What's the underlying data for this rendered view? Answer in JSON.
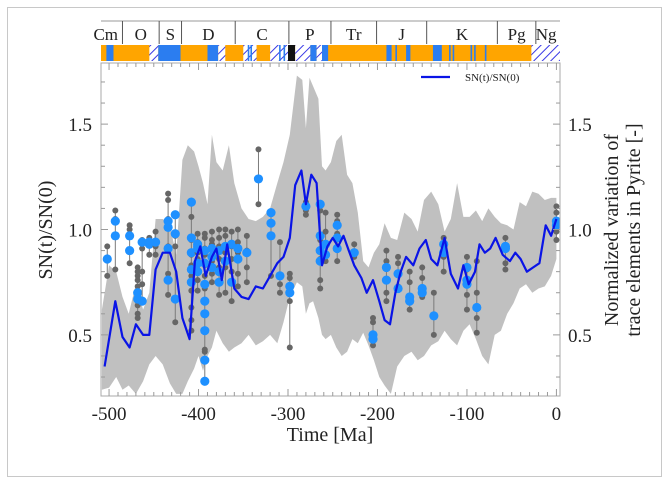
{
  "chart_data": {
    "type": "line",
    "title": "",
    "xlabel": "Time [Ma]",
    "ylabel": "SN(t)/SN(0)",
    "ylabel_right": [
      "Normalized variation of",
      "trace elements in Pyrite [-]"
    ],
    "xlim": [
      -509,
      4
    ],
    "ylim": [
      0.21,
      1.79
    ],
    "x_ticks": [
      -500,
      -400,
      -300,
      -200,
      -100,
      0
    ],
    "x_tick_labels": [
      "-500",
      "-400",
      "-300",
      "-200",
      "-100",
      "0"
    ],
    "y_ticks": [
      0.5,
      1.0,
      1.5
    ],
    "y_tick_labels": [
      "0.5",
      "1.0",
      "1.5"
    ],
    "grid": false,
    "legend": {
      "position": "top-right",
      "entries": [
        {
          "label": "SN(t)/SN(0)",
          "color": "#0a14e6"
        }
      ]
    },
    "colors": {
      "line": "#0a14e6",
      "band": "#c0c0c0",
      "points_gray": "#666666",
      "points_blue": "#1e90ff",
      "orange": "#ffa500",
      "period_blue": "#2b7df0"
    },
    "geologic_periods": [
      {
        "label": "Cm",
        "start": -541,
        "end": -485
      },
      {
        "label": "O",
        "start": -485,
        "end": -444
      },
      {
        "label": "S",
        "start": -444,
        "end": -419
      },
      {
        "label": "D",
        "start": -419,
        "end": -359
      },
      {
        "label": "C",
        "start": -359,
        "end": -299
      },
      {
        "label": "P",
        "start": -299,
        "end": -252
      },
      {
        "label": "Tr",
        "start": -252,
        "end": -201
      },
      {
        "label": "J",
        "start": -201,
        "end": -145
      },
      {
        "label": "K",
        "start": -145,
        "end": -66
      },
      {
        "label": "Pg",
        "start": -66,
        "end": -23
      },
      {
        "label": "Ng",
        "start": -23,
        "end": 0
      }
    ],
    "polarity_bar": [
      {
        "start": -509,
        "end": -503,
        "type": "orange"
      },
      {
        "start": -503,
        "end": -495,
        "type": "blue"
      },
      {
        "start": -495,
        "end": -455,
        "type": "orange"
      },
      {
        "start": -455,
        "end": -445,
        "type": "hatched"
      },
      {
        "start": -445,
        "end": -420,
        "type": "blue"
      },
      {
        "start": -420,
        "end": -390,
        "type": "orange"
      },
      {
        "start": -390,
        "end": -378,
        "type": "blue"
      },
      {
        "start": -378,
        "end": -370,
        "type": "hatched"
      },
      {
        "start": -370,
        "end": -350,
        "type": "orange"
      },
      {
        "start": -350,
        "end": -335,
        "type": "hatched"
      },
      {
        "start": -335,
        "end": -320,
        "type": "orange"
      },
      {
        "start": -320,
        "end": -300,
        "type": "hatched"
      },
      {
        "start": -300,
        "end": -292,
        "type": "black"
      },
      {
        "start": -292,
        "end": -275,
        "type": "hatched"
      },
      {
        "start": -275,
        "end": -268,
        "type": "blue"
      },
      {
        "start": -268,
        "end": -262,
        "type": "hatched"
      },
      {
        "start": -262,
        "end": -255,
        "type": "blue"
      },
      {
        "start": -255,
        "end": -190,
        "type": "orange"
      },
      {
        "start": -190,
        "end": -186,
        "type": "blue"
      },
      {
        "start": -186,
        "end": -168,
        "type": "orange"
      },
      {
        "start": -168,
        "end": -164,
        "type": "blue"
      },
      {
        "start": -164,
        "end": -158,
        "type": "orange"
      },
      {
        "start": -158,
        "end": -145,
        "type": "orange"
      },
      {
        "start": -138,
        "end": -128,
        "type": "blue"
      },
      {
        "start": -128,
        "end": -84,
        "type": "orange"
      },
      {
        "start": -84,
        "end": -28,
        "type": "orange"
      },
      {
        "start": -28,
        "end": -5,
        "type": "hatched"
      },
      {
        "start": -5,
        "end": 4,
        "type": "hatched"
      }
    ],
    "series": [
      {
        "name": "SN(t)/SN(0)",
        "type": "line",
        "x": [
          -505,
          -493,
          -485,
          -477,
          -470,
          -462,
          -455,
          -448,
          -440,
          -432,
          -425,
          -418,
          -410,
          -404,
          -398,
          -392,
          -385,
          -380,
          -374,
          -368,
          -360,
          -352,
          -344,
          -336,
          -328,
          -320,
          -312,
          -305,
          -298,
          -292,
          -285,
          -280,
          -274,
          -268,
          -262,
          -256,
          -250,
          -244,
          -238,
          -232,
          -226,
          -218,
          -212,
          -205,
          -198,
          -192,
          -186,
          -180,
          -174,
          -168,
          -160,
          -153,
          -146,
          -140,
          -133,
          -125,
          -118,
          -110,
          -104,
          -98,
          -91,
          -86,
          -80,
          -74,
          -68,
          -60,
          -52,
          -46,
          -40,
          -33,
          -26,
          -19,
          -12,
          -6,
          0
        ],
        "values": [
          0.35,
          0.66,
          0.49,
          0.44,
          0.55,
          0.5,
          0.5,
          0.81,
          0.89,
          0.89,
          0.8,
          0.58,
          0.48,
          0.85,
          0.92,
          0.78,
          0.87,
          0.91,
          0.76,
          0.93,
          0.72,
          0.68,
          0.67,
          0.73,
          0.72,
          0.78,
          0.84,
          0.87,
          0.96,
          1.21,
          1.28,
          1.12,
          1.26,
          1.22,
          0.83,
          0.92,
          0.96,
          0.92,
          0.97,
          0.9,
          0.83,
          0.77,
          0.7,
          0.76,
          0.66,
          0.57,
          0.55,
          0.7,
          0.8,
          0.87,
          0.83,
          0.91,
          0.95,
          0.86,
          0.83,
          0.96,
          0.79,
          0.72,
          0.83,
          0.74,
          0.8,
          0.93,
          0.89,
          0.91,
          0.96,
          0.88,
          0.85,
          0.89,
          0.86,
          0.8,
          0.82,
          0.84,
          1.02,
          0.97,
          1.05
        ]
      },
      {
        "name": "uncertainty-band",
        "type": "area",
        "x": [
          -508,
          -500,
          -492,
          -485,
          -478,
          -470,
          -462,
          -455,
          -448,
          -440,
          -432,
          -425,
          -418,
          -412,
          -405,
          -400,
          -395,
          -390,
          -385,
          -380,
          -373,
          -366,
          -360,
          -352,
          -344,
          -336,
          -328,
          -320,
          -312,
          -305,
          -298,
          -290,
          -284,
          -280,
          -276,
          -272,
          -266,
          -262,
          -258,
          -252,
          -246,
          -240,
          -234,
          -228,
          -222,
          -216,
          -210,
          -204,
          -198,
          -192,
          -185,
          -178,
          -170,
          -162,
          -155,
          -148,
          -140,
          -132,
          -125,
          -118,
          -111,
          -104,
          -97,
          -90,
          -83,
          -76,
          -69,
          -62,
          -55,
          -48,
          -41,
          -34,
          -27,
          -20,
          -13,
          -6,
          0
        ],
        "upper": [
          0.62,
          0.83,
          0.8,
          0.68,
          0.6,
          0.74,
          0.62,
          0.7,
          1.05,
          1.05,
          1.02,
          0.88,
          1.33,
          1.4,
          1.37,
          1.3,
          1.22,
          1.12,
          1.45,
          1.32,
          1.28,
          1.4,
          1.22,
          1.1,
          1.05,
          1.04,
          1.06,
          1.1,
          1.22,
          1.32,
          1.45,
          1.73,
          1.71,
          1.48,
          1.72,
          1.68,
          1.62,
          1.3,
          1.28,
          1.32,
          1.42,
          1.45,
          1.26,
          1.22,
          1.08,
          0.85,
          0.82,
          0.89,
          0.93,
          1.03,
          0.96,
          0.95,
          1.08,
          1.05,
          0.99,
          1.14,
          1.18,
          1.12,
          0.99,
          1.05,
          1.22,
          1.06,
          1.06,
          1.09,
          1.04,
          1.1,
          1.06,
          1.03,
          1.02,
          1.0,
          1.13,
          1.11,
          1.18,
          1.17,
          1.14,
          1.15,
          1.15
        ],
        "lower": [
          0.24,
          0.25,
          0.3,
          0.24,
          0.26,
          0.22,
          0.28,
          0.36,
          0.4,
          0.36,
          0.27,
          0.22,
          0.22,
          0.28,
          0.34,
          0.4,
          0.33,
          0.4,
          0.44,
          0.52,
          0.46,
          0.42,
          0.44,
          0.46,
          0.5,
          0.45,
          0.47,
          0.5,
          0.46,
          0.56,
          0.68,
          0.75,
          0.73,
          0.6,
          0.65,
          0.66,
          0.58,
          0.5,
          0.48,
          0.5,
          0.44,
          0.4,
          0.42,
          0.48,
          0.46,
          0.51,
          0.45,
          0.38,
          0.3,
          0.26,
          0.22,
          0.35,
          0.4,
          0.42,
          0.38,
          0.4,
          0.45,
          0.47,
          0.52,
          0.48,
          0.45,
          0.52,
          0.55,
          0.48,
          0.4,
          0.36,
          0.5,
          0.52,
          0.6,
          0.65,
          0.72,
          0.74,
          0.7,
          0.72,
          0.73,
          0.78,
          0.86
        ]
      }
    ],
    "point_groups": [
      {
        "x": -502,
        "gray": [
          0.92,
          0.78
        ],
        "blue": [
          0.86
        ]
      },
      {
        "x": -493,
        "gray": [
          1.09,
          1.05,
          0.81
        ],
        "blue": [
          1.04,
          0.97
        ]
      },
      {
        "x": -477,
        "gray": [
          1.02,
          1.0,
          0.84
        ],
        "blue": [
          0.97,
          0.9
        ]
      },
      {
        "x": -468,
        "gray": [
          0.82,
          0.8,
          0.78,
          0.76,
          0.73,
          0.66,
          0.64,
          0.6,
          0.58
        ],
        "blue": [
          0.7,
          0.67
        ]
      },
      {
        "x": -463,
        "gray": [
          0.95,
          0.91,
          0.8,
          0.74
        ],
        "blue": [
          0.94,
          0.66
        ]
      },
      {
        "x": -455,
        "gray": [
          0.96,
          0.88
        ],
        "blue": [
          0.94,
          0.93
        ]
      },
      {
        "x": -448,
        "gray": [
          0.99,
          0.92,
          0.88
        ],
        "blue": [
          0.94
        ]
      },
      {
        "x": -434,
        "gray": [
          1.17,
          1.14,
          1.05,
          1.02,
          0.92,
          0.79,
          0.69
        ],
        "blue": [
          1.04,
          1.01,
          0.91,
          0.76
        ]
      },
      {
        "x": -426,
        "gray": [
          0.97,
          0.92,
          0.56
        ],
        "blue": [
          1.07,
          0.98,
          0.67
        ]
      },
      {
        "x": -408,
        "gray": [
          1.13,
          1.06,
          0.95,
          0.88,
          0.83,
          0.78,
          0.71,
          0.63,
          0.57,
          0.52
        ],
        "blue": [
          1.13,
          0.96,
          0.89,
          0.81,
          0.75
        ]
      },
      {
        "x": -401,
        "gray": [
          0.98,
          0.94,
          0.89,
          0.86,
          0.84,
          0.81,
          0.76,
          0.71
        ],
        "blue": [
          0.93,
          0.92,
          0.91,
          0.84,
          0.8
        ]
      },
      {
        "x": -393,
        "gray": [
          0.98,
          0.96,
          0.91,
          0.88,
          0.83,
          0.78,
          0.72,
          0.6,
          0.43,
          0.42
        ],
        "blue": [
          0.9,
          0.84,
          0.74,
          0.66,
          0.6,
          0.52,
          0.38,
          0.28
        ]
      },
      {
        "x": -385,
        "gray": [
          0.99,
          0.95,
          0.93,
          0.9,
          0.85,
          0.79,
          0.75
        ],
        "blue": [
          0.91,
          0.87,
          0.82
        ]
      },
      {
        "x": -377,
        "gray": [
          1.0,
          0.96,
          0.92,
          0.86,
          0.82,
          0.75,
          0.69
        ],
        "blue": [
          0.9,
          0.8,
          0.75
        ]
      },
      {
        "x": -370,
        "gray": [
          1.0,
          0.97,
          0.89,
          0.82,
          0.7
        ],
        "blue": [
          0.92,
          0.85
        ]
      },
      {
        "x": -363,
        "gray": [
          0.99,
          0.92,
          0.86,
          0.8,
          0.66
        ],
        "blue": [
          0.93,
          0.75
        ]
      },
      {
        "x": -356,
        "gray": [
          1.0,
          0.94,
          0.89,
          0.79,
          0.73
        ],
        "blue": [
          0.91,
          0.86
        ]
      },
      {
        "x": -346,
        "gray": [
          0.97,
          0.9,
          0.82,
          0.75
        ],
        "blue": [
          0.89
        ]
      },
      {
        "x": -333,
        "gray": [
          1.38,
          1.12
        ],
        "blue": [
          1.24
        ]
      },
      {
        "x": -319,
        "gray": [
          1.08,
          1.03,
          0.78
        ],
        "blue": [
          1.03,
          0.97,
          1.08
        ]
      },
      {
        "x": -309,
        "gray": [
          0.94,
          0.74,
          0.7
        ],
        "blue": [
          0.78
        ]
      },
      {
        "x": -298,
        "gray": [
          0.79,
          0.77,
          0.66,
          0.44
        ],
        "blue": [
          0.73,
          0.7
        ]
      },
      {
        "x": -280,
        "gray": [
          1.07,
          1.09,
          1.13
        ],
        "blue": [
          1.11
        ]
      },
      {
        "x": -264,
        "gray": [
          1.09,
          0.95,
          0.86,
          0.76,
          0.72
        ],
        "blue": [
          1.12,
          0.97,
          0.9,
          0.85
        ]
      },
      {
        "x": -258,
        "gray": [
          1.08,
          0.99,
          0.85
        ],
        "blue": [
          0.93,
          0.88
        ]
      },
      {
        "x": -245,
        "gray": [
          1.07,
          1.04,
          0.98,
          0.91,
          0.85
        ],
        "blue": [
          1.02,
          0.96,
          0.91
        ]
      },
      {
        "x": -226,
        "gray": [
          0.93,
          0.87
        ],
        "blue": [
          0.89
        ]
      },
      {
        "x": -205,
        "gray": [
          0.58,
          0.56,
          0.47,
          0.45
        ],
        "blue": [
          0.5,
          0.48
        ]
      },
      {
        "x": -190,
        "gray": [
          0.9,
          0.85,
          0.7,
          0.66
        ],
        "blue": [
          0.82,
          0.76
        ]
      },
      {
        "x": -177,
        "gray": [
          0.87,
          0.84,
          0.73
        ],
        "blue": [
          0.79,
          0.72
        ]
      },
      {
        "x": -164,
        "gray": [
          0.8,
          0.75,
          0.66,
          0.62
        ],
        "blue": [
          0.68,
          0.66
        ]
      },
      {
        "x": -150,
        "gray": [
          0.82,
          0.77,
          0.68
        ],
        "blue": [
          0.72,
          0.7
        ]
      },
      {
        "x": -137,
        "gray": [
          0.7,
          0.5
        ],
        "blue": [
          0.59
        ]
      },
      {
        "x": -126,
        "gray": [
          0.96,
          0.93,
          0.87,
          0.8
        ],
        "blue": [
          0.93,
          0.89
        ]
      },
      {
        "x": -100,
        "gray": [
          0.87,
          0.81,
          0.74,
          0.69,
          0.62
        ],
        "blue": [
          0.82,
          0.76,
          0.74
        ]
      },
      {
        "x": -89,
        "gray": [
          0.85,
          0.7,
          0.58,
          0.51
        ],
        "blue": [
          0.63
        ]
      },
      {
        "x": -57,
        "gray": [
          0.96,
          0.92,
          0.84,
          0.81
        ],
        "blue": [
          0.92,
          0.91
        ]
      },
      {
        "x": 0,
        "gray": [
          1.11,
          1.08,
          1.04,
          0.99,
          0.95
        ],
        "blue": [
          1.04,
          1.02
        ]
      }
    ]
  }
}
